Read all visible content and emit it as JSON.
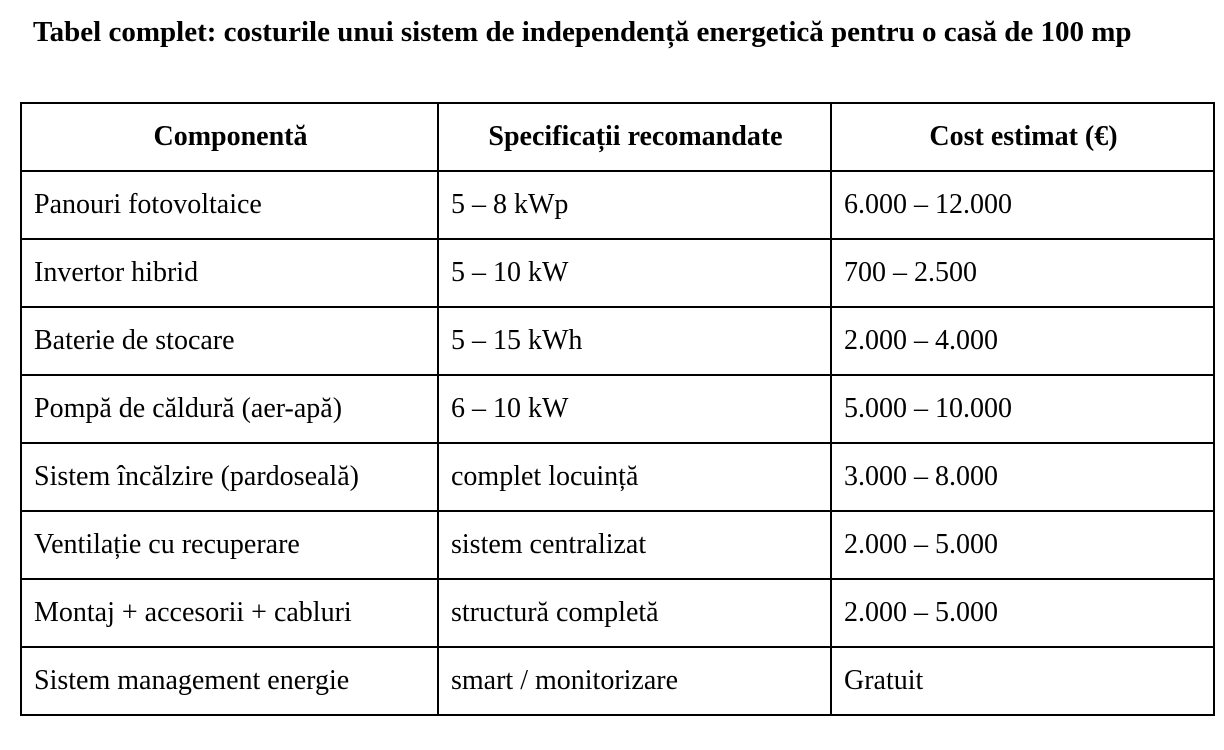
{
  "header": {
    "title": "Tabel complet: costurile unui sistem de independență energetică pentru o casă de 100 mp"
  },
  "table": {
    "columns": [
      "Componentă",
      "Specificații recomandate",
      "Cost estimat (€)"
    ],
    "rows": [
      [
        "Panouri fotovoltaice",
        "5 – 8 kWp",
        "6.000 – 12.000"
      ],
      [
        "Invertor hibrid",
        "5 – 10 kW",
        "700 – 2.500"
      ],
      [
        "Baterie de stocare",
        "5 – 15 kWh",
        "2.000 – 4.000"
      ],
      [
        "Pompă de căldură (aer-apă)",
        "6 – 10 kW",
        "5.000 – 10.000"
      ],
      [
        "Sistem încălzire (pardoseală)",
        "complet locuință",
        "3.000 – 8.000"
      ],
      [
        "Ventilație cu recuperare",
        "sistem centralizat",
        "2.000 – 5.000"
      ],
      [
        "Montaj + accesorii + cabluri",
        "structură completă",
        "2.000 – 5.000"
      ],
      [
        "Sistem management energie",
        "smart / monitorizare",
        "Gratuit"
      ]
    ]
  }
}
